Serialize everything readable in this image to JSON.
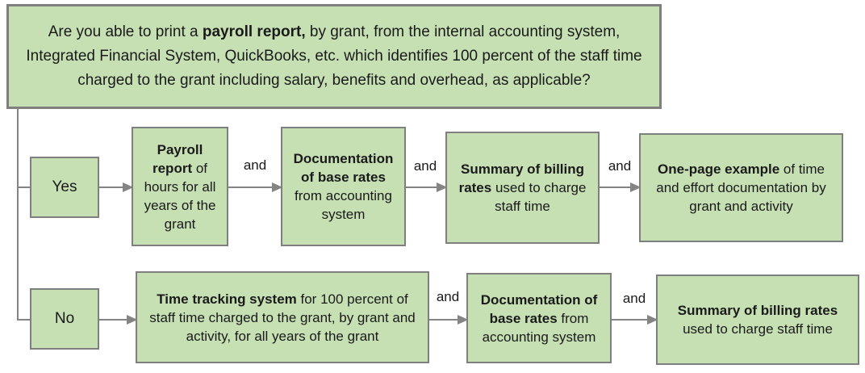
{
  "colors": {
    "box_fill": "#c6e0b4",
    "box_border": "#7f7f7f",
    "connector": "#848484",
    "text": "#1a1a1a",
    "page_bg": "#ffffff"
  },
  "question": {
    "segments": [
      {
        "t": "Are you able to print a "
      },
      {
        "t": "payroll report,",
        "b": true
      },
      {
        "t": " by grant, from the internal accounting system, Integrated Financial System, QuickBooks, etc. which identifies 100 percent of the staff time charged to the grant including salary, benefits and overhead, as applicable?"
      }
    ]
  },
  "labels": {
    "and": "and"
  },
  "flow": {
    "yes": {
      "label": "Yes",
      "steps": [
        {
          "segments": [
            {
              "t": "Payroll report",
              "b": true
            },
            {
              "t": " of hours for all years of the grant"
            }
          ]
        },
        {
          "segments": [
            {
              "t": "Documentation of base rates",
              "b": true
            },
            {
              "t": " from accounting system"
            }
          ]
        },
        {
          "segments": [
            {
              "t": "Summary of billing rates",
              "b": true
            },
            {
              "t": " used to charge staff time"
            }
          ]
        },
        {
          "segments": [
            {
              "t": "One-page example",
              "b": true
            },
            {
              "t": " of time and effort documentation by grant and activity"
            }
          ]
        }
      ]
    },
    "no": {
      "label": "No",
      "steps": [
        {
          "segments": [
            {
              "t": "Time tracking system",
              "b": true
            },
            {
              "t": " for 100 percent of staff time charged to the grant, by grant and activity, for all years of the grant"
            }
          ]
        },
        {
          "segments": [
            {
              "t": "Documentation of base rates",
              "b": true
            },
            {
              "t": " from accounting system"
            }
          ]
        },
        {
          "segments": [
            {
              "t": "Summary of billing rates",
              "b": true
            },
            {
              "t": " used to charge staff time"
            }
          ]
        }
      ]
    }
  }
}
